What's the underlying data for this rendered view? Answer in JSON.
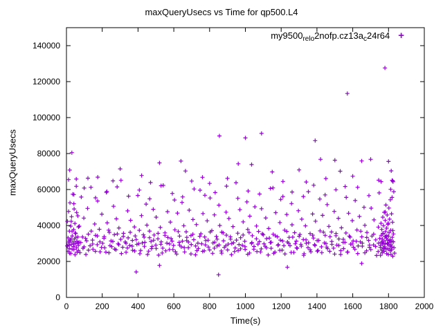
{
  "chart_data": {
    "type": "scatter",
    "title": "maxQueryUsecs vs Time for qp500.L4",
    "xlabel": "Time(s)",
    "ylabel": "maxQueryUsecs",
    "xlim": [
      0,
      2000
    ],
    "ylim": [
      0,
      150000
    ],
    "x_ticks": [
      0,
      200,
      400,
      600,
      800,
      1000,
      1200,
      1400,
      1600,
      1800,
      2000
    ],
    "y_ticks": [
      0,
      20000,
      40000,
      60000,
      80000,
      100000,
      120000,
      140000
    ],
    "grid": false,
    "legend": {
      "position": "top-right",
      "label_plain": "my9500_rel_o2nofp.cz13a_c24r64",
      "segments": [
        {
          "text": "my9500",
          "sub": false
        },
        {
          "text": "rel",
          "sub": true
        },
        {
          "text": "o",
          "sub": true
        },
        {
          "text": "2nofp.cz13a",
          "sub": false
        },
        {
          "text": "c",
          "sub": true
        },
        {
          "text": "24r64",
          "sub": false
        }
      ]
    },
    "marker": {
      "shape": "plus",
      "color": "#9400D3"
    },
    "scatter": {
      "bands": [
        {
          "x_start": 6,
          "x_end": 1832,
          "x_jitter": [
            0,
            2.1,
            -1.8,
            1.2,
            -0.7,
            2.6,
            -2.2,
            0.9,
            -1.4,
            1.7
          ],
          "y_values": [
            28500,
            31200,
            24600,
            42300,
            36800,
            52100,
            29800,
            33400,
            47200,
            26100,
            39600,
            30500,
            55800,
            27300,
            44100,
            32800,
            23900,
            49500,
            35200,
            28700,
            61200,
            31900,
            26800,
            40800,
            34500,
            29300,
            53600,
            37900,
            25400,
            46300,
            30100,
            33800,
            27600,
            58400,
            41500,
            24800,
            36200,
            31400,
            28200,
            50700,
            34900,
            26500,
            43700,
            29900,
            38600,
            32300,
            65100,
            27900,
            35600,
            30800,
            25100,
            48100,
            33100,
            28900,
            42900,
            31700,
            26200,
            39200,
            34200,
            29500,
            56700,
            37300,
            24300,
            45500,
            30300,
            33500,
            28400,
            51900,
            40200,
            25700,
            36900,
            31100,
            27100,
            49000,
            34700,
            29100,
            44600,
            32600,
            23500,
            38900,
            30900,
            27400,
            62300,
            35900,
            25900,
            47700,
            33300,
            29700,
            41900,
            31300,
            26600,
            54200,
            37600,
            24100,
            46900,
            30600,
            34100,
            28100,
            52800,
            39900,
            25300,
            36500,
            31600,
            27700,
            48500,
            34400,
            29400,
            43300,
            32100,
            23700,
            40500,
            30200,
            27200,
            59600,
            35400,
            25600,
            46600,
            33600,
            29200,
            42600,
            31800,
            26400,
            55300,
            37100,
            24500,
            45900,
            30700,
            33900,
            28600,
            51300,
            40000,
            25800,
            36300,
            31500,
            27800,
            47400,
            34600,
            29600,
            43900,
            32400,
            23800,
            39400,
            30400,
            27500,
            63800,
            35700,
            26000,
            48800,
            33200,
            29000,
            42000,
            31200,
            26700,
            53100,
            37800,
            24700,
            45200,
            30000,
            34300,
            28300,
            50400,
            39700,
            25500,
            36700,
            31000,
            27000,
            49300,
            34800,
            29800,
            44200,
            32700,
            23600,
            38300,
            30500,
            27300,
            60900,
            35100,
            25200,
            47100,
            33700,
            29300,
            41600,
            31900,
            26300,
            56100,
            37400,
            24200,
            46100,
            30800,
            33400,
            28800,
            52200,
            40400,
            25000,
            36000,
            31300,
            27600,
            48200,
            34000,
            29500,
            43500,
            32200,
            23400,
            39800,
            30100,
            27700,
            58800,
            35500,
            25400,
            46400,
            33000,
            28900,
            42400,
            31600,
            26100,
            54700,
            37000,
            24900,
            45600,
            30300,
            34500,
            28000,
            51600,
            39500,
            25600,
            36400,
            31100,
            27400,
            47800,
            34300,
            29100,
            44000,
            32500,
            23900,
            38700,
            30600,
            27100,
            61700,
            35800,
            25300,
            46800,
            33500,
            29600,
            42700,
            31400,
            26800,
            53900,
            37500,
            24400,
            45000,
            30900,
            33700,
            28500,
            50100,
            40100,
            25900,
            36100,
            31700,
            27900,
            49600,
            34100,
            29200,
            43100,
            32000,
            23300,
            39100,
            30200,
            27800,
            64400,
            35300,
            25700,
            47500,
            33800,
            29900,
            41300,
            31500,
            26500,
            55600,
            37200,
            24600
          ]
        },
        {
          "x_start": 15,
          "x_end": 1825,
          "x_jitter": [
            0.5,
            -1.2,
            2.2,
            -2.4,
            1.1,
            -0.3,
            1.9,
            -1.6
          ],
          "y_values": [
            29000,
            32500,
            26700,
            35800,
            30400,
            24900,
            33600,
            28100,
            31500,
            26300,
            36900,
            29700,
            25600,
            34200,
            30900,
            27800,
            32900,
            25200,
            37400,
            28800,
            31100,
            26900,
            35300,
            29300,
            24400,
            33900,
            30100,
            27500,
            36200,
            28500,
            25800,
            32200,
            29900,
            26100,
            34800,
            30600,
            23900,
            33200,
            28300,
            31800,
            27200,
            35600,
            29500,
            24700,
            34500,
            30200,
            26600,
            32700,
            28900,
            25400,
            36600,
            29100,
            31300,
            27700,
            33400,
            30800,
            24200,
            35100,
            28600,
            26000,
            34000,
            29800,
            25900,
            31600,
            28000,
            36400,
            30300,
            27400,
            32400,
            29200,
            24600,
            35900,
            28700,
            26400,
            33700,
            30000,
            25500,
            31900,
            29400,
            27000,
            34700,
            28200,
            24000,
            36100,
            30500,
            26800,
            32600,
            29600,
            25300,
            35400,
            28400,
            27600,
            33000,
            30700,
            24500,
            34300,
            29000,
            26200,
            31400,
            28800,
            36700,
            30100,
            25000,
            33500,
            29900,
            27300,
            35000,
            28500,
            24300,
            32000,
            30400,
            26500,
            34600,
            29300,
            25700,
            31700,
            28100,
            36300,
            30000,
            27100,
            33800,
            29500,
            24100,
            35500,
            28900,
            26000,
            32300,
            30600,
            25100,
            34100,
            29700,
            27900,
            31200,
            28600,
            36800,
            30200,
            24800,
            33300,
            29100,
            26600,
            35200,
            28300,
            25500,
            32800,
            30900,
            27000,
            34400,
            29600,
            23800,
            31000
          ]
        },
        {
          "x_start": 40,
          "x_end": 1810,
          "x_jitter": [
            1.3,
            -2.1,
            0.4,
            2.4,
            -1.1,
            1.8
          ],
          "y_values": [
            57200,
            60800,
            55400,
            58900,
            61500,
            56300,
            59700,
            54800,
            62100,
            57800,
            55900,
            60300,
            56800,
            58300,
            61900,
            55100,
            59200,
            57500,
            60600,
            54500,
            58600,
            56100,
            62400,
            57000,
            59900,
            55600,
            61200,
            56600,
            58100,
            60100
          ]
        },
        {
          "x_start": 1755,
          "x_end": 1830,
          "x_jitter": [
            0.3,
            -0.9,
            1.4,
            -1.1,
            0.6
          ],
          "y_values": [
            23400,
            28900,
            34500,
            41200,
            30700,
            26300,
            37800,
            32400,
            24800,
            44600,
            29600,
            35700,
            27500,
            39900,
            31500,
            25600,
            47300,
            33800,
            28200,
            42800,
            30100,
            36600,
            26900,
            51400,
            32900,
            24300,
            38500,
            29900,
            45800,
            31900,
            27100,
            40600,
            34100,
            23900,
            49700,
            30500,
            36100,
            28600,
            43500,
            32100,
            25900,
            54300,
            29300,
            37300,
            31100,
            26500,
            46500,
            33400,
            28000,
            41800,
            64800,
            22900,
            35300,
            30900,
            58800,
            27700
          ]
        },
        {
          "x_start": 4,
          "x_end": 70,
          "x_jitter": [
            0.2,
            -0.8,
            1.1,
            -1.3
          ],
          "y_values": [
            28700,
            42300,
            33100,
            25600,
            47800,
            30400,
            36900,
            27200,
            52600,
            31800,
            24500,
            39600,
            29500,
            44900,
            34200,
            26800,
            57400,
            30900,
            37700,
            28300,
            49200,
            32500,
            23800,
            41100,
            29900,
            35500,
            27600,
            61800,
            31300,
            25200,
            45400,
            33600,
            28900,
            39200,
            30600
          ]
        }
      ],
      "outliers": [
        [
          12,
          65500
        ],
        [
          18,
          70800
        ],
        [
          30,
          80500
        ],
        [
          55,
          65800
        ],
        [
          120,
          66300
        ],
        [
          175,
          66900
        ],
        [
          260,
          64800
        ],
        [
          300,
          71500
        ],
        [
          420,
          67800
        ],
        [
          470,
          63900
        ],
        [
          520,
          74800
        ],
        [
          640,
          75800
        ],
        [
          665,
          70300
        ],
        [
          700,
          64700
        ],
        [
          760,
          66800
        ],
        [
          800,
          63400
        ],
        [
          855,
          89800
        ],
        [
          900,
          66200
        ],
        [
          960,
          74300
        ],
        [
          1000,
          88700
        ],
        [
          1035,
          73900
        ],
        [
          1090,
          91200
        ],
        [
          1150,
          69800
        ],
        [
          1210,
          64500
        ],
        [
          1300,
          70900
        ],
        [
          1340,
          64200
        ],
        [
          1390,
          87200
        ],
        [
          1420,
          76800
        ],
        [
          1450,
          66100
        ],
        [
          1500,
          76300
        ],
        [
          1530,
          70200
        ],
        [
          1570,
          113400
        ],
        [
          1600,
          67400
        ],
        [
          1650,
          75900
        ],
        [
          1700,
          76800
        ],
        [
          1745,
          65200
        ],
        [
          1780,
          127600
        ],
        [
          1800,
          75600
        ],
        [
          1815,
          70400
        ],
        [
          1820,
          65100
        ],
        [
          1825,
          64300
        ]
      ],
      "low_points": [
        [
          390,
          14200
        ],
        [
          850,
          12600
        ],
        [
          1235,
          16800
        ],
        [
          520,
          17800
        ],
        [
          1650,
          18900
        ]
      ]
    }
  }
}
